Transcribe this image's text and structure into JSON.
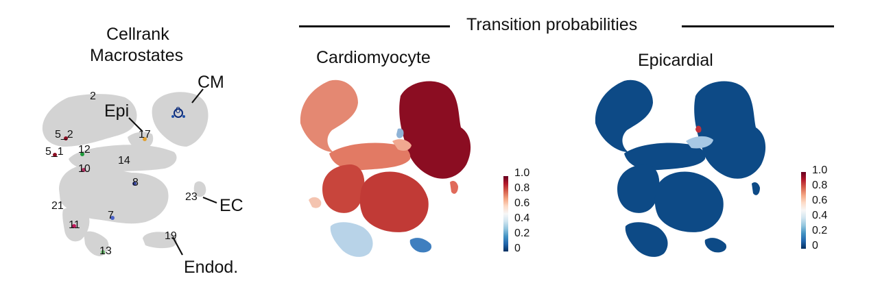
{
  "left_panel": {
    "title_line1": "Cellrank",
    "title_line2": "Macrostates",
    "clusters": [
      {
        "label": "2"
      },
      {
        "label": "5_2"
      },
      {
        "label": "5_1"
      },
      {
        "label": "12"
      },
      {
        "label": "10"
      },
      {
        "label": "14"
      },
      {
        "label": "17"
      },
      {
        "label": "8"
      },
      {
        "label": "21"
      },
      {
        "label": "7"
      },
      {
        "label": "11"
      },
      {
        "label": "13"
      },
      {
        "label": "19"
      },
      {
        "label": "23"
      },
      {
        "label": "0"
      }
    ],
    "annotations": {
      "epi": "Epi",
      "cm": "CM",
      "ec": "EC",
      "endod": "Endod."
    }
  },
  "header": {
    "title": "Transition probabilities"
  },
  "panels": [
    {
      "title": "Cardiomyocyte"
    },
    {
      "title": "Epicardial"
    }
  ],
  "colorbar": {
    "ticks": [
      "1.0",
      "0.8",
      "0.6",
      "0.4",
      "0.2",
      "0"
    ],
    "gradient": [
      "#67001f",
      "#b2182b",
      "#d6604d",
      "#f4a582",
      "#fddbc7",
      "#f7f7f7",
      "#d1e5f0",
      "#92c5de",
      "#4393c3",
      "#2166ac",
      "#053061"
    ]
  },
  "colors": {
    "grey": "#d3d3d3",
    "deep_red": "#8b0d22",
    "salmon": "#e08872",
    "mid_red": "#c8453c",
    "blue": "#0d4a86"
  }
}
